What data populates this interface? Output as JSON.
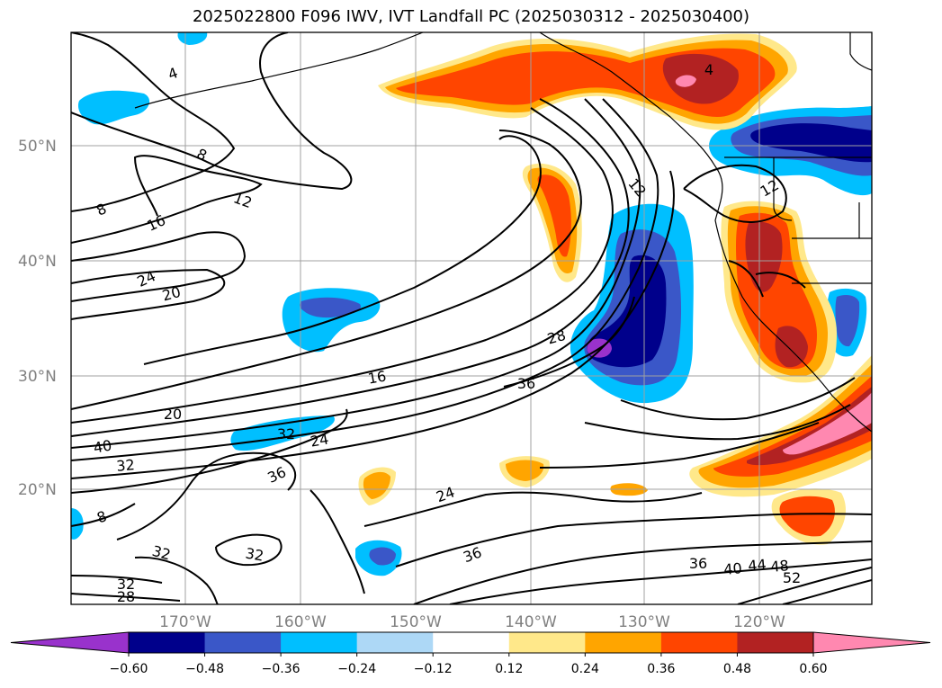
{
  "title": "2025022800 F096 IWV, IVT Landfall PC (2025030312 - 2025030400)",
  "map": {
    "lat_labels": [
      "50°N",
      "40°N",
      "30°N",
      "20°N"
    ],
    "lon_labels": [
      "170°W",
      "160°W",
      "150°W",
      "140°W",
      "130°W",
      "120°W"
    ]
  },
  "contour_labels": [
    "4",
    "8",
    "8",
    "12",
    "16",
    "24",
    "20",
    "16",
    "20",
    "36",
    "40",
    "32",
    "28",
    "24",
    "32",
    "36",
    "24",
    "32",
    "32",
    "36",
    "32",
    "28",
    "12",
    "12",
    "8",
    "4",
    "36",
    "40",
    "44",
    "48",
    "52"
  ],
  "colorbar": {
    "ticks": [
      "−0.60",
      "−0.48",
      "−0.36",
      "−0.24",
      "−0.12",
      "0.12",
      "0.24",
      "0.36",
      "0.48",
      "0.60"
    ],
    "colors": [
      "#9932cc",
      "#00008b",
      "#3a57c8",
      "#00bfff",
      "#add8f6",
      "#ffffff",
      "#ffe88a",
      "#ffa500",
      "#ff4500",
      "#b22222",
      "#ff88b0"
    ]
  }
}
